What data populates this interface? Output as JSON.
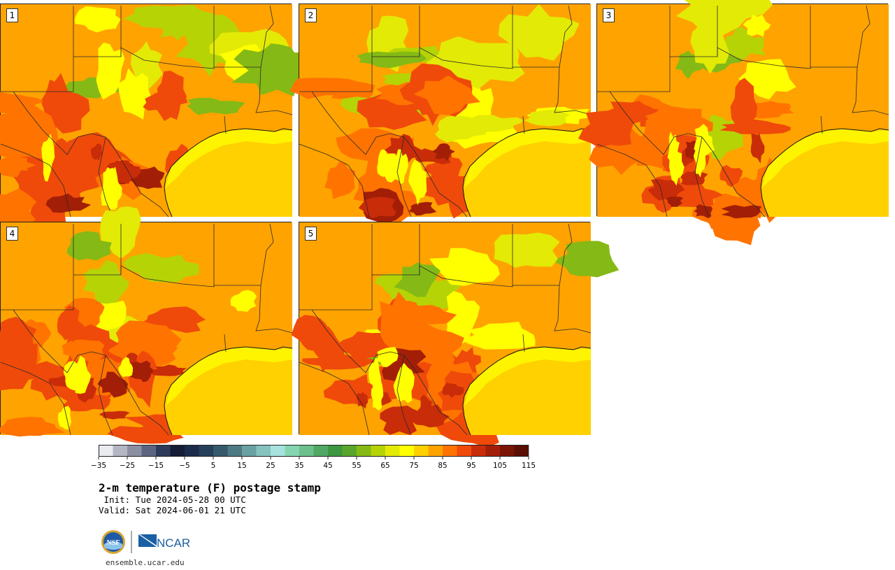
{
  "title": "2-m temperature (F) postage stamp",
  "init_line": " Init: Tue 2024-05-28 00 UTC",
  "valid_line": "Valid: Sat 2024-06-01 21 UTC",
  "site": "ensemble.ucar.edu",
  "logo_text": {
    "nsf": "NSF",
    "ncar": "NCAR"
  },
  "members": [
    {
      "label": "1",
      "hot": 0.55
    },
    {
      "label": "2",
      "hot": 0.55
    },
    {
      "label": "3",
      "hot": 0.75
    },
    {
      "label": "4",
      "hot": 0.8
    },
    {
      "label": "5",
      "hot": 0.7
    }
  ],
  "colorbar": {
    "min": -35,
    "max": 120,
    "step": 5,
    "tick_labels": [
      "−35",
      "−25",
      "−15",
      "−5",
      "5",
      "15",
      "25",
      "35",
      "45",
      "55",
      "65",
      "75",
      "85",
      "95",
      "105",
      "115"
    ],
    "colors": [
      "#e9ebef",
      "#b4b6c4",
      "#8c8ea1",
      "#5c6580",
      "#2e3a5a",
      "#141c36",
      "#1b2b4a",
      "#26405a",
      "#365a6c",
      "#4d7a84",
      "#6aa1a3",
      "#86c3bf",
      "#a6e3dc",
      "#84d5b0",
      "#6cc08b",
      "#51a865",
      "#3d9640",
      "#5aa52c",
      "#85b915",
      "#b6d306",
      "#e3ea05",
      "#ffff00",
      "#ffd000",
      "#ffa300",
      "#ff7300",
      "#ef4a0a",
      "#c92c08",
      "#a21e07",
      "#7a1506",
      "#5a0f04"
    ]
  },
  "map_colors": {
    "gulf": "#ffd100",
    "land_base": "#ffa300",
    "cool": [
      "#e3ea05",
      "#ffff00",
      "#b6d306",
      "#85b915"
    ],
    "warm": [
      "#ff7300",
      "#ef4a0a"
    ],
    "hot": [
      "#c92c08",
      "#a21e07"
    ],
    "border": "#2a2a2a"
  }
}
